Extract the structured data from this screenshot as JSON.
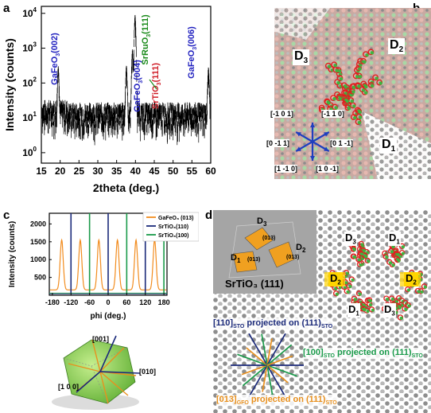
{
  "panel_a": {
    "letter": "a",
    "chart_data": {
      "type": "line",
      "xlabel": "2theta (deg.)",
      "ylabel": "Intensity (counts)",
      "xlim": [
        15,
        60
      ],
      "ylim_log10": [
        -0.3,
        4.2
      ],
      "log_y": true,
      "x_ticks": [
        "15",
        "20",
        "25",
        "30",
        "35",
        "40",
        "45",
        "50",
        "55",
        "60"
      ],
      "y_ticks": [
        {
          "base": "10",
          "exp": "0"
        },
        {
          "base": "10",
          "exp": "1"
        },
        {
          "base": "10",
          "exp": "2"
        },
        {
          "base": "10",
          "exp": "3"
        },
        {
          "base": "10",
          "exp": "4"
        }
      ],
      "peaks": [
        {
          "x": 19.5,
          "y": 280
        },
        {
          "x": 37.6,
          "y": 300
        },
        {
          "x": 39.2,
          "y": 900
        },
        {
          "x": 39.9,
          "y": 9000
        },
        {
          "x": 59.4,
          "y": 260
        }
      ],
      "background_counts": 10,
      "annotations": [
        {
          "main": "GaFeO",
          "sub": "3",
          "tail": "(002)",
          "color": "#1f1fbf"
        },
        {
          "main": "GaFeO",
          "sub": "3",
          "tail": "(004)",
          "color": "#1f1fbf"
        },
        {
          "main": "SrRuO",
          "sub": "3",
          "tail": "(111)",
          "color": "#1a8a1a"
        },
        {
          "main": "SrTiO",
          "sub": "3",
          "tail": "(111)",
          "color": "#d0202a"
        },
        {
          "main": "GaFeO",
          "sub": "3",
          "tail": "(006)",
          "color": "#1f1fbf"
        }
      ]
    }
  },
  "panel_b": {
    "letter": "b",
    "domains": [
      {
        "main": "D",
        "sub": "3"
      },
      {
        "main": "D",
        "sub": "2"
      },
      {
        "main": "D",
        "sub": "1"
      }
    ],
    "directions": [
      "[-1 0 1]",
      "[-1 1 0]",
      "[0 -1 1]",
      "[0 1 -1]",
      "[1 -1 0]",
      "[1 0 -1]"
    ]
  },
  "panel_c": {
    "letter": "c",
    "chart_data": {
      "type": "line",
      "xlabel": "phi (deg.)",
      "ylabel": "Intensity (counts)",
      "xlim": [
        -190,
        190
      ],
      "ylim": [
        0,
        2300
      ],
      "x_ticks": [
        "-180",
        "-120",
        "-60",
        "0",
        "60",
        "120",
        "180"
      ],
      "y_ticks": [
        "500",
        "1000",
        "1500",
        "2000"
      ],
      "series": [
        {
          "name": "GaFeO₃ (013)",
          "color": "#f28c1e",
          "peaks": [
            -150,
            -90,
            -30,
            30,
            90,
            150
          ],
          "height": 1550,
          "baseline": 150
        },
        {
          "name": "SrTiO₃(110)",
          "color": "#1b2a7a",
          "peaks": [
            -120,
            0,
            120
          ],
          "height": 2300
        },
        {
          "name": "SrTiO₃(100)",
          "color": "#1a9a4a",
          "peaks": [
            -60,
            60,
            180
          ],
          "height": 2300
        }
      ]
    },
    "cube_labels": [
      "[001]",
      "[010]",
      "[1 0 0]"
    ]
  },
  "panel_d": {
    "letter": "d",
    "inset_domains": [
      {
        "main": "D",
        "sub": "3",
        "tag": "(013)"
      },
      {
        "main": "D",
        "sub": "2",
        "tag": "(013)"
      },
      {
        "main": "D",
        "sub": "1",
        "tag": "(013)"
      }
    ],
    "inset_title": "SrTiO₃ (111)",
    "right_domains": [
      {
        "main": "D",
        "sub": "3"
      },
      {
        "main": "D",
        "sub": "1"
      },
      {
        "main": "D",
        "sub": "2"
      },
      {
        "main": "D",
        "sub": "2"
      },
      {
        "main": "D",
        "sub": "1"
      },
      {
        "main": "D",
        "sub": "3"
      }
    ],
    "legend": [
      {
        "a": "[110]",
        "as": "STO",
        "b": " projected on (111)",
        "bs": "STO",
        "color": "#1b2a7a"
      },
      {
        "a": "[100]",
        "as": "STO",
        "b": " projected on (111)",
        "bs": "STO",
        "color": "#1a9a4a"
      },
      {
        "a": "[013]",
        "as": "GFO",
        "b": " projected on (111)",
        "bs": "STO",
        "color": "#e8901e"
      }
    ]
  }
}
